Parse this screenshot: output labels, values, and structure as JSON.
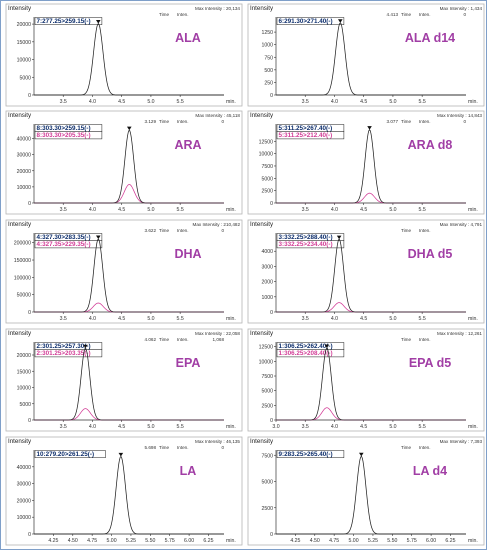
{
  "colors": {
    "primary": "#222222",
    "secondary": "#d23c96",
    "label": "#a13ea5",
    "transition_primary": "#0c2d6b",
    "transition_secondary": "#d23c96",
    "frame": "#7f9fc9"
  },
  "chart_data": [
    {
      "type": "line",
      "analyte": "ALA",
      "ylabel": "Intensity",
      "xlabel": "min.",
      "transitions": [
        "7:277.25>259.15(-)"
      ],
      "max_intensity": "Max Intensity : 20,134",
      "time_label": "Time",
      "inten_label": "Inten.",
      "time_value": "",
      "inten_value": "",
      "xlim": [
        3.0,
        6.25
      ],
      "ylim": [
        0,
        22000
      ],
      "xticks": [
        "3.5",
        "4.0",
        "4.5",
        "5.0",
        "5.5"
      ],
      "xtick_values": [
        3.5,
        4.0,
        4.5,
        5.0,
        5.5
      ],
      "yticks": [
        "0",
        "5000",
        "10000",
        "15000",
        "20000"
      ],
      "ytick_values": [
        0,
        5000,
        10000,
        15000,
        20000
      ],
      "series": [
        {
          "peak_time": 4.1,
          "height": 20134,
          "width": 0.08
        }
      ]
    },
    {
      "type": "line",
      "analyte": "ALA d14",
      "ylabel": "Intensity",
      "xlabel": "min.",
      "transitions": [
        "6:291.30>271.40(-)"
      ],
      "max_intensity": "Max Intensity : 1,434",
      "time_label": "Time",
      "inten_label": "Inten.",
      "time_value": "4.413",
      "inten_value": "0",
      "xlim": [
        3.0,
        6.25
      ],
      "ylim": [
        0,
        1550
      ],
      "xticks": [
        "3.5",
        "4.0",
        "4.5",
        "5.0",
        "5.5"
      ],
      "xtick_values": [
        3.5,
        4.0,
        4.5,
        5.0,
        5.5
      ],
      "yticks": [
        "0",
        "250",
        "500",
        "750",
        "1000",
        "1250"
      ],
      "ytick_values": [
        0,
        250,
        500,
        750,
        1000,
        1250
      ],
      "series": [
        {
          "peak_time": 4.1,
          "height": 1434,
          "width": 0.08
        }
      ]
    },
    {
      "type": "line",
      "analyte": "ARA",
      "ylabel": "Intensity",
      "xlabel": "min.",
      "transitions": [
        "8:303.30>259.15(-)",
        "8:303.30>205.35(-)"
      ],
      "max_intensity": "Max Intensity : 45,118",
      "time_label": "Time",
      "inten_label": "Inten.",
      "time_value": "3.129",
      "inten_value": "0",
      "xlim": [
        3.0,
        6.25
      ],
      "ylim": [
        0,
        49000
      ],
      "xticks": [
        "3.5",
        "4.0",
        "4.5",
        "5.0",
        "5.5"
      ],
      "xtick_values": [
        3.5,
        4.0,
        4.5,
        5.0,
        5.5
      ],
      "yticks": [
        "0",
        "10000",
        "20000",
        "30000",
        "40000"
      ],
      "ytick_values": [
        0,
        10000,
        20000,
        30000,
        40000
      ],
      "series": [
        {
          "peak_time": 4.63,
          "height": 45118,
          "width": 0.075
        },
        {
          "peak_time": 4.63,
          "height": 11500,
          "width": 0.085
        }
      ]
    },
    {
      "type": "line",
      "analyte": "ARA d8",
      "ylabel": "Intensity",
      "xlabel": "min.",
      "transitions": [
        "5:311.25>267.40(-)",
        "5:311.25>212.40(-)"
      ],
      "max_intensity": "Max Intensity : 14,843",
      "time_label": "Time",
      "inten_label": "Inten.",
      "time_value": "3.077",
      "inten_value": "0",
      "xlim": [
        3.0,
        6.25
      ],
      "ylim": [
        0,
        16000
      ],
      "xticks": [
        "3.5",
        "4.0",
        "4.5",
        "5.0",
        "5.5"
      ],
      "xtick_values": [
        3.5,
        4.0,
        4.5,
        5.0,
        5.5
      ],
      "yticks": [
        "0",
        "2500",
        "5000",
        "7500",
        "10000",
        "12500"
      ],
      "ytick_values": [
        0,
        2500,
        5000,
        7500,
        10000,
        12500
      ],
      "series": [
        {
          "peak_time": 4.6,
          "height": 14843,
          "width": 0.075
        },
        {
          "peak_time": 4.6,
          "height": 2000,
          "width": 0.085
        }
      ]
    },
    {
      "type": "line",
      "analyte": "DHA",
      "ylabel": "Intensity",
      "xlabel": "min.",
      "transitions": [
        "4:327.30>283.35(-)",
        "4:327.35>229.35(-)"
      ],
      "max_intensity": "Max Intensity : 210,482",
      "time_label": "Time",
      "inten_label": "Inten.",
      "time_value": "3.622",
      "inten_value": "0",
      "xlim": [
        3.0,
        6.25
      ],
      "ylim": [
        0,
        228000
      ],
      "xticks": [
        "3.5",
        "4.0",
        "4.5",
        "5.0",
        "5.5"
      ],
      "xtick_values": [
        3.5,
        4.0,
        4.5,
        5.0,
        5.5
      ],
      "yticks": [
        "0",
        "50000",
        "100000",
        "150000",
        "200000"
      ],
      "ytick_values": [
        0,
        50000,
        100000,
        150000,
        200000
      ],
      "series": [
        {
          "peak_time": 4.1,
          "height": 210482,
          "width": 0.075
        },
        {
          "peak_time": 4.1,
          "height": 26000,
          "width": 0.085
        }
      ]
    },
    {
      "type": "line",
      "analyte": "DHA d5",
      "ylabel": "Intensity",
      "xlabel": "min.",
      "transitions": [
        "3:332.25>288.40(-)",
        "3:332.25>234.40(-)"
      ],
      "max_intensity": "Max Intensity : 4,791",
      "time_label": "Time",
      "inten_label": "Inten.",
      "time_value": "",
      "inten_value": "",
      "xlim": [
        3.0,
        6.25
      ],
      "ylim": [
        0,
        5200
      ],
      "xticks": [
        "3.5",
        "4.0",
        "4.5",
        "5.0",
        "5.5"
      ],
      "xtick_values": [
        3.5,
        4.0,
        4.5,
        5.0,
        5.5
      ],
      "yticks": [
        "0",
        "1000",
        "2000",
        "3000",
        "4000"
      ],
      "ytick_values": [
        0,
        1000,
        2000,
        3000,
        4000
      ],
      "series": [
        {
          "peak_time": 4.08,
          "height": 4791,
          "width": 0.075
        },
        {
          "peak_time": 4.08,
          "height": 620,
          "width": 0.085
        }
      ]
    },
    {
      "type": "line",
      "analyte": "EPA",
      "ylabel": "Intensity",
      "xlabel": "min.",
      "transitions": [
        "2:301.25>257.30(-)",
        "2:301.25>203.35(-)"
      ],
      "max_intensity": "Max Intensity : 22,058",
      "time_label": "Time",
      "inten_label": "Inten.",
      "time_value": "4.062",
      "inten_value": "1,068",
      "xlim": [
        3.0,
        6.25
      ],
      "ylim": [
        0,
        24000
      ],
      "xticks": [
        "3.5",
        "4.0",
        "4.5",
        "5.0",
        "5.5"
      ],
      "xtick_values": [
        3.5,
        4.0,
        4.5,
        5.0,
        5.5
      ],
      "yticks": [
        "0",
        "5000",
        "10000",
        "15000",
        "20000"
      ],
      "ytick_values": [
        0,
        5000,
        10000,
        15000,
        20000
      ],
      "series": [
        {
          "peak_time": 3.88,
          "height": 22058,
          "width": 0.075
        },
        {
          "peak_time": 3.88,
          "height": 3500,
          "width": 0.085
        }
      ]
    },
    {
      "type": "line",
      "analyte": "EPA d5",
      "ylabel": "Intensity",
      "xlabel": "min.",
      "transitions": [
        "1:306.25>262.40(-)",
        "1:306.25>208.40(-)"
      ],
      "max_intensity": "Max Intensity : 12,261",
      "time_label": "Time",
      "inten_label": "Inten.",
      "time_value": "",
      "inten_value": "",
      "xlim": [
        3.0,
        6.25
      ],
      "ylim": [
        0,
        13300
      ],
      "xticks": [
        "3.0",
        "3.5",
        "4.0",
        "4.5",
        "5.0",
        "5.5"
      ],
      "xtick_values": [
        3.0,
        3.5,
        4.0,
        4.5,
        5.0,
        5.5
      ],
      "yticks": [
        "0",
        "2500",
        "5000",
        "7500",
        "10000",
        "12500"
      ],
      "ytick_values": [
        0,
        2500,
        5000,
        7500,
        10000,
        12500
      ],
      "series": [
        {
          "peak_time": 3.87,
          "height": 12261,
          "width": 0.075
        },
        {
          "peak_time": 3.87,
          "height": 2100,
          "width": 0.085
        }
      ]
    },
    {
      "type": "line",
      "analyte": "LA",
      "ylabel": "Intensity",
      "xlabel": "min.",
      "transitions": [
        "10:279.20>261.25(-)"
      ],
      "max_intensity": "Max Intensity : 46,135",
      "time_label": "Time",
      "inten_label": "Inten.",
      "time_value": "5.698",
      "inten_value": "0",
      "xlim": [
        4.0,
        6.45
      ],
      "ylim": [
        0,
        50000
      ],
      "xticks": [
        "4.25",
        "4.50",
        "4.75",
        "5.00",
        "5.25",
        "5.50",
        "5.75",
        "6.00",
        "6.25"
      ],
      "xtick_values": [
        4.25,
        4.5,
        4.75,
        5.0,
        5.25,
        5.5,
        5.75,
        6.0,
        6.25
      ],
      "yticks": [
        "0",
        "10000",
        "20000",
        "30000",
        "40000"
      ],
      "ytick_values": [
        0,
        10000,
        20000,
        30000,
        40000
      ],
      "series": [
        {
          "peak_time": 5.12,
          "height": 46135,
          "width": 0.06
        }
      ]
    },
    {
      "type": "line",
      "analyte": "LA d4",
      "ylabel": "Intensity",
      "xlabel": "min.",
      "transitions": [
        "9:283.25>265.40(-)"
      ],
      "max_intensity": "Max Intensity : 7,393",
      "time_label": "Time",
      "inten_label": "Inten.",
      "time_value": "",
      "inten_value": "",
      "xlim": [
        4.0,
        6.45
      ],
      "ylim": [
        0,
        8000
      ],
      "xticks": [
        "4.25",
        "4.50",
        "4.75",
        "5.00",
        "5.25",
        "5.50",
        "5.75",
        "6.00",
        "6.25"
      ],
      "xtick_values": [
        4.25,
        4.5,
        4.75,
        5.0,
        5.25,
        5.5,
        5.75,
        6.0,
        6.25
      ],
      "yticks": [
        "0",
        "2500",
        "5000",
        "7500"
      ],
      "ytick_values": [
        0,
        2500,
        5000,
        7500
      ],
      "series": [
        {
          "peak_time": 5.1,
          "height": 7393,
          "width": 0.06
        }
      ]
    }
  ]
}
